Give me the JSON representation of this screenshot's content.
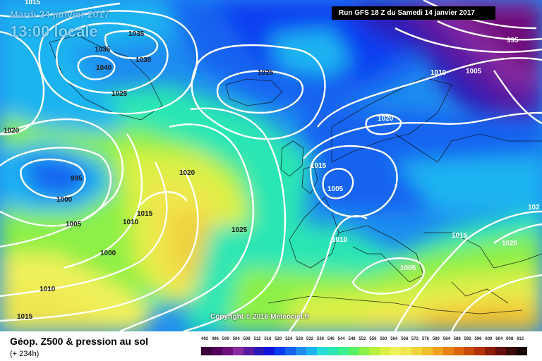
{
  "header": {
    "date": "Mardi 24 janvier 2017",
    "time": "13:00 locale",
    "run": "Run GFS 18 Z du Samedi 14 janvier 2017"
  },
  "copyright": "Copyright © 2016 Meteociel.fr",
  "footer": {
    "title": "Géop. Z500 & pression au sol",
    "subtitle": "(+ 234h)"
  },
  "isobar_labels": [
    {
      "text": "1015"
    },
    {
      "text": "1035"
    },
    {
      "text": "1035"
    },
    {
      "text": "1030"
    },
    {
      "text": "1040"
    },
    {
      "text": "1025"
    },
    {
      "text": "1025"
    },
    {
      "text": "995"
    },
    {
      "text": "1010"
    },
    {
      "text": "1005"
    },
    {
      "text": "1020"
    },
    {
      "text": "1020"
    },
    {
      "text": "995"
    },
    {
      "text": "1000"
    },
    {
      "text": "1005"
    },
    {
      "text": "1020"
    },
    {
      "text": "1015"
    },
    {
      "text": "1010"
    },
    {
      "text": "1000"
    },
    {
      "text": "1025"
    },
    {
      "text": "1015"
    },
    {
      "text": "1005"
    },
    {
      "text": "1010"
    },
    {
      "text": "1010"
    },
    {
      "text": "1015"
    },
    {
      "text": "1020"
    },
    {
      "text": "1005"
    },
    {
      "text": "1015"
    },
    {
      "text": "102"
    }
  ],
  "scale": {
    "labels": [
      "492",
      "496",
      "500",
      "504",
      "508",
      "512",
      "516",
      "520",
      "524",
      "528",
      "532",
      "536",
      "540",
      "544",
      "548",
      "552",
      "556",
      "560",
      "564",
      "568",
      "572",
      "576",
      "580",
      "584",
      "588",
      "592",
      "596",
      "600",
      "604",
      "608",
      "612"
    ],
    "colors": [
      "#3a003a",
      "#55005a",
      "#70107a",
      "#8a2aa0",
      "#5a1aa0",
      "#2a1ab8",
      "#1414d8",
      "#0a3cf0",
      "#1464f0",
      "#1e8cf0",
      "#1eb4f0",
      "#28dcdc",
      "#2ce6b4",
      "#3cf08c",
      "#5af064",
      "#8cf046",
      "#b4f03c",
      "#dcf046",
      "#f0f05a",
      "#f0e650",
      "#f0d23c",
      "#f0be2c",
      "#f0a01e",
      "#e68214",
      "#dc640a",
      "#c84a0a",
      "#b4320a",
      "#8c1e0a",
      "#641010",
      "#3c0a0a",
      "#1a0505"
    ]
  }
}
